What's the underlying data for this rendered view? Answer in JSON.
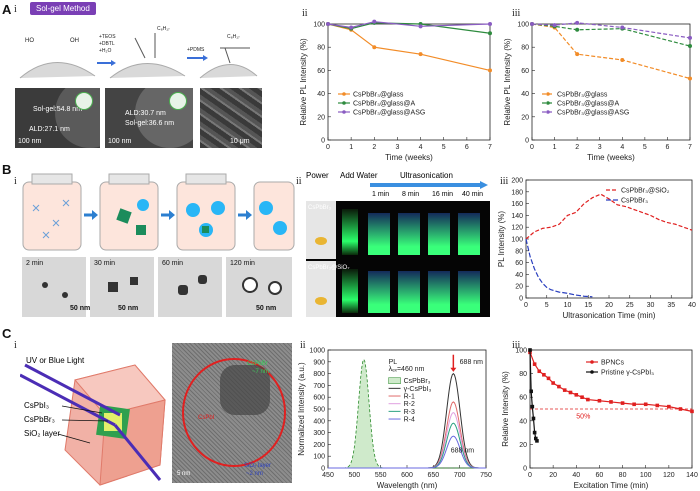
{
  "panelA": {
    "label": "A",
    "sub_i": "i",
    "sub_ii": "ii",
    "sub_iii": "iii",
    "method_badge": "Sol-gel Method",
    "reagents1": [
      "+TEOS",
      "+DBTL",
      "+H₂O"
    ],
    "reagents2": "+PDMS",
    "chem_labels": [
      "HO",
      "OH",
      "C₈H₁₇",
      "C₈H₁₇"
    ],
    "tem1": {
      "line1": "Sol-gel:54.8 nm",
      "line2": "ALD:27.1 nm",
      "scale": "100 nm"
    },
    "tem2": {
      "line1": "ALD:30.7 nm",
      "line2": "Sol-gel:36.6 nm",
      "scale": "100 nm"
    },
    "tem3": {
      "scale": "10 μm"
    }
  },
  "panelB": {
    "label": "B",
    "sub_i": "i",
    "sub_ii": "ii",
    "sub_iii": "iii",
    "times": [
      "2 min",
      "30 min",
      "60 min",
      "120 min"
    ],
    "scale": "50 nm",
    "photo_headers": {
      "power": "Power",
      "water": "Add Water",
      "ultra": "Ultrasonication"
    },
    "photo_times": [
      "1 min",
      "8 min",
      "16 min",
      "40 min"
    ],
    "row_labels": [
      "CsPbBr₃",
      "CsPbBr₃@SiO₂"
    ]
  },
  "panelC": {
    "label": "C",
    "sub_i": "i",
    "sub_ii": "ii",
    "sub_iii": "iii",
    "schematic": {
      "light": "UV or Blue Light",
      "l1": "CsPbI₃",
      "l2": "CsPbBr₃",
      "l3": "SiO₂ layer"
    },
    "tem": {
      "t1": "CsPbBr",
      "t2": "~7 nm",
      "t3": "CsPbI",
      "t4": "SiO₂ layer",
      "t5": "~2 nm",
      "scale": "5 nm"
    }
  },
  "colors": {
    "orange": "#f28c28",
    "green": "#2e8b3e",
    "purple": "#8a5cc2",
    "red": "#e02020",
    "blue": "#2a3fbf",
    "glow": "#39ff7a"
  },
  "chart_data": [
    {
      "id": "A-ii",
      "type": "line",
      "xlabel": "Time (weeks)",
      "ylabel": "Relative PL Intensity (%)",
      "xlim": [
        0,
        7
      ],
      "ylim": [
        0,
        100
      ],
      "xticks": [
        "0",
        "1",
        "2",
        "3",
        "4",
        "5",
        "6",
        "7"
      ],
      "yticks": [
        "0",
        "20",
        "40",
        "60",
        "80",
        "100"
      ],
      "series": [
        {
          "name": "CsPbBr₃@glass",
          "x": [
            0,
            1,
            2,
            4,
            7
          ],
          "values": [
            100,
            95,
            80,
            74,
            60
          ]
        },
        {
          "name": "CsPbBr₃@glass@A",
          "x": [
            0,
            1,
            2,
            4,
            7
          ],
          "values": [
            100,
            96,
            101,
            100,
            92
          ]
        },
        {
          "name": "CsPbBr₃@glass@ASG",
          "x": [
            0,
            1,
            2,
            4,
            7
          ],
          "values": [
            100,
            97,
            102,
            98,
            100
          ]
        }
      ]
    },
    {
      "id": "A-iii",
      "type": "line",
      "xlabel": "Time (weeks)",
      "ylabel": "Relative PL Intensity (%)",
      "xlim": [
        0,
        7
      ],
      "ylim": [
        0,
        100
      ],
      "xticks": [
        "0",
        "1",
        "2",
        "3",
        "4",
        "5",
        "6",
        "7"
      ],
      "yticks": [
        "0",
        "20",
        "40",
        "60",
        "80",
        "100"
      ],
      "series": [
        {
          "name": "CsPbBr₃@glass",
          "x": [
            0,
            1,
            2,
            4,
            7
          ],
          "values": [
            100,
            97,
            74,
            69,
            53
          ]
        },
        {
          "name": "CsPbBr₃@glass@A",
          "x": [
            0,
            1,
            2,
            4,
            7
          ],
          "values": [
            100,
            98,
            95,
            96,
            81
          ]
        },
        {
          "name": "CsPbBr₃@glass@ASG",
          "x": [
            0,
            1,
            2,
            4,
            7
          ],
          "values": [
            100,
            99,
            101,
            97,
            88
          ]
        }
      ]
    },
    {
      "id": "B-iii",
      "type": "line",
      "xlabel": "Ultrasonication Time (min)",
      "ylabel": "PL Intensity (%)",
      "xlim": [
        0,
        40
      ],
      "ylim": [
        0,
        200
      ],
      "xticks": [
        "0",
        "5",
        "10",
        "15",
        "20",
        "25",
        "30",
        "35",
        "40"
      ],
      "yticks": [
        "0",
        "20",
        "40",
        "60",
        "80",
        "100",
        "120",
        "140",
        "160",
        "180",
        "200"
      ],
      "series": [
        {
          "name": "CsPbBr₃@SiO₂",
          "x": [
            0,
            2,
            4,
            6,
            8,
            10,
            12,
            14,
            16,
            18,
            20,
            22,
            24,
            26,
            28,
            30,
            32,
            34,
            36,
            38,
            40
          ],
          "values": [
            100,
            112,
            118,
            120,
            125,
            140,
            145,
            160,
            170,
            176,
            168,
            158,
            155,
            150,
            145,
            140,
            133,
            128,
            125,
            120,
            115
          ]
        },
        {
          "name": "CsPbBr₃",
          "x": [
            0,
            1,
            2,
            3,
            4,
            5,
            6,
            8,
            10,
            12,
            14,
            16
          ],
          "values": [
            100,
            70,
            50,
            35,
            25,
            18,
            14,
            10,
            8,
            5,
            3,
            2
          ]
        }
      ]
    },
    {
      "id": "C-ii",
      "type": "line",
      "xlabel": "Wavelength (nm)",
      "ylabel": "Normalized Intensity (a.u.)",
      "xlim": [
        450,
        750
      ],
      "ylim": [
        0,
        1000
      ],
      "xticks": [
        "450",
        "500",
        "550",
        "600",
        "650",
        "700",
        "750"
      ],
      "yticks": [
        "0",
        "100",
        "200",
        "300",
        "400",
        "500",
        "600",
        "700",
        "800",
        "900",
        "1000"
      ],
      "annotations": [
        "PL",
        "λₑₓ=460 nm",
        "688 nm",
        "688 nm"
      ],
      "series": [
        {
          "name": "CsPbBr₃",
          "peak": 518,
          "height": 920
        },
        {
          "name": "γ-CsPbI₃",
          "peak": 688,
          "height": 800
        },
        {
          "name": "R-1",
          "peak": 688,
          "height": 560
        },
        {
          "name": "R-2",
          "peak": 688,
          "height": 470
        },
        {
          "name": "R-3",
          "peak": 688,
          "height": 380
        },
        {
          "name": "R-4",
          "peak": 688,
          "height": 270
        }
      ]
    },
    {
      "id": "C-iii",
      "type": "line",
      "xlabel": "Excitation Time (min)",
      "ylabel": "Relative Intensity (%)",
      "xlim": [
        0,
        140
      ],
      "ylim": [
        0,
        100
      ],
      "xticks": [
        "0",
        "20",
        "40",
        "60",
        "80",
        "100",
        "120",
        "140"
      ],
      "yticks": [
        "0",
        "20",
        "40",
        "60",
        "80",
        "100"
      ],
      "annotations": [
        "50%"
      ],
      "series": [
        {
          "name": "BPNCs",
          "x": [
            0,
            4,
            8,
            12,
            16,
            20,
            25,
            30,
            35,
            40,
            45,
            50,
            60,
            70,
            80,
            90,
            100,
            110,
            120,
            130,
            140
          ],
          "values": [
            98,
            88,
            82,
            79,
            76,
            72,
            69,
            66,
            64,
            62,
            60,
            58,
            57,
            56,
            55,
            54,
            54,
            53,
            52,
            50,
            48
          ]
        },
        {
          "name": "Pristine γ-CsPbI₃",
          "x": [
            0,
            1,
            2,
            3,
            4,
            5,
            6
          ],
          "values": [
            100,
            65,
            52,
            42,
            30,
            25,
            23
          ]
        }
      ]
    }
  ]
}
